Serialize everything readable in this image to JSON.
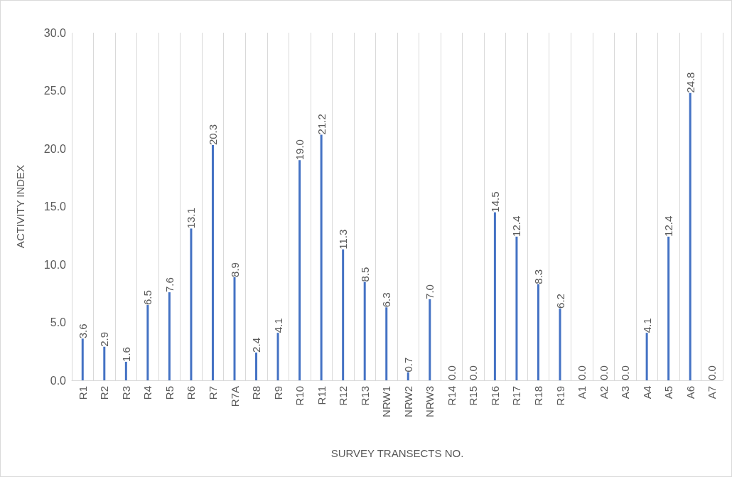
{
  "chart_data": {
    "type": "bar",
    "xlabel": "SURVEY TRANSECTS NO.",
    "ylabel": "ACTIVITY INDEX",
    "categories": [
      "R1",
      "R2",
      "R3",
      "R4",
      "R5",
      "R6",
      "R7",
      "R7A",
      "R8",
      "R9",
      "R10",
      "R11",
      "R12",
      "R13",
      "NRW1",
      "NRW2",
      "NRW3",
      "R14",
      "R15",
      "R16",
      "R17",
      "R18",
      "R19",
      "A1",
      "A2",
      "A3",
      "A4",
      "A5",
      "A6",
      "A7"
    ],
    "values": [
      3.6,
      2.9,
      1.6,
      6.5,
      7.6,
      13.1,
      20.3,
      8.9,
      2.4,
      4.1,
      19.0,
      21.2,
      11.3,
      8.5,
      6.3,
      0.7,
      7.0,
      0.0,
      0.0,
      14.5,
      12.4,
      8.3,
      6.2,
      0.0,
      0.0,
      0.0,
      4.1,
      12.4,
      24.8,
      0.0
    ],
    "value_labels": [
      "3.6",
      "2.9",
      "1.6",
      "6.5",
      "7.6",
      "13.1",
      "20.3",
      "8.9",
      "2.4",
      "4.1",
      "19.0",
      "21.2",
      "11.3",
      "8.5",
      "6.3",
      "0.7",
      "7.0",
      "0.0",
      "0.0",
      "14.5",
      "12.4",
      "8.3",
      "6.2",
      "0.0",
      "0.0",
      "0.0",
      "4.1",
      "12.4",
      "24.8",
      "0.0"
    ],
    "color": "#4472c4",
    "ylim": [
      0,
      30
    ],
    "yticks": [
      {
        "value": 0,
        "label": "0.0"
      },
      {
        "value": 5,
        "label": "5.0"
      },
      {
        "value": 10,
        "label": "10.0"
      },
      {
        "value": 15,
        "label": "15.0"
      },
      {
        "value": 20,
        "label": "20.0"
      },
      {
        "value": 25,
        "label": "25.0"
      },
      {
        "value": 30,
        "label": "30.0"
      }
    ],
    "grid": "x"
  }
}
